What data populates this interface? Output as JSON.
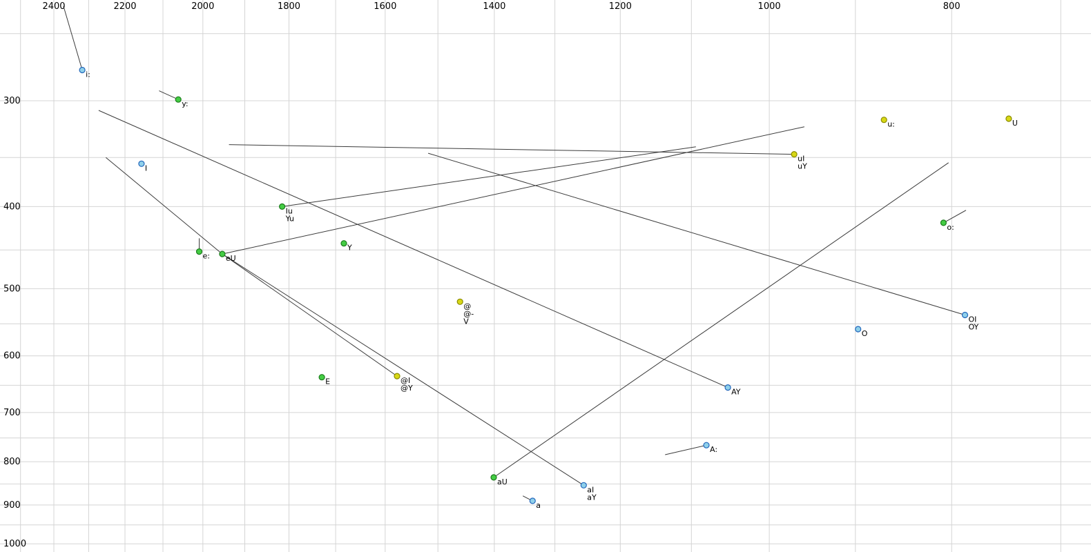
{
  "chart_data": {
    "type": "scatter",
    "title": "",
    "description": "Vowel formant plot (SAMPA labels), F2 on reversed log x-axis, F1 on log y-axis, diphthong trajectory lines",
    "x_axis": {
      "ticks": [
        2400,
        2200,
        2000,
        1800,
        1600,
        1400,
        1200,
        1000,
        800
      ],
      "scale": "log",
      "reversed": true,
      "grid_step": 100,
      "grid_min": 700,
      "grid_max": 2500
    },
    "y_axis": {
      "ticks": [
        300,
        400,
        500,
        600,
        700,
        800,
        900,
        1000
      ],
      "scale": "log",
      "direction": "down",
      "grid_step": 50,
      "grid_min": 250,
      "grid_max": 1000
    },
    "grid": true,
    "colors": {
      "blue": {
        "fill": "#8fd0ea",
        "stroke": "#2266bb"
      },
      "green": {
        "fill": "#44cc44",
        "stroke": "#1a7a1a"
      },
      "yellow": {
        "fill": "#d8d816",
        "stroke": "#8a8a00"
      },
      "grid": "#d4d4d4",
      "line": "#3a3a3a",
      "text": "#000000"
    },
    "points": [
      {
        "labels": [
          "i:"
        ],
        "f2": 2318,
        "f1": 276,
        "color": "blue"
      },
      {
        "labels": [
          "y:"
        ],
        "f2": 2061,
        "f1": 299,
        "color": "green"
      },
      {
        "labels": [
          "I"
        ],
        "f2": 2156,
        "f1": 356,
        "color": "blue"
      },
      {
        "labels": [
          "Iu",
          "Yu"
        ],
        "f2": 1815,
        "f1": 400,
        "color": "green"
      },
      {
        "labels": [
          "u:"
        ],
        "f2": 869,
        "f1": 316,
        "color": "yellow"
      },
      {
        "labels": [
          "U"
        ],
        "f2": 746,
        "f1": 315,
        "color": "yellow"
      },
      {
        "labels": [
          "uI",
          "uY"
        ],
        "f2": 970,
        "f1": 347,
        "color": "yellow"
      },
      {
        "labels": [
          "o:"
        ],
        "f2": 808,
        "f1": 418,
        "color": "green"
      },
      {
        "labels": [
          "e:"
        ],
        "f2": 2009,
        "f1": 452,
        "color": "green"
      },
      {
        "labels": [
          "eU"
        ],
        "f2": 1953,
        "f1": 455,
        "color": "green"
      },
      {
        "labels": [
          "Y"
        ],
        "f2": 1683,
        "f1": 442,
        "color": "green"
      },
      {
        "labels": [
          "@",
          "@-",
          "V"
        ],
        "f2": 1460,
        "f1": 518,
        "color": "yellow"
      },
      {
        "labels": [
          "OI",
          "OY"
        ],
        "f2": 787,
        "f1": 537,
        "color": "blue"
      },
      {
        "labels": [
          "O"
        ],
        "f2": 897,
        "f1": 558,
        "color": "blue"
      },
      {
        "labels": [
          "E"
        ],
        "f2": 1729,
        "f1": 636,
        "color": "green"
      },
      {
        "labels": [
          "@I",
          "@Y"
        ],
        "f2": 1577,
        "f1": 634,
        "color": "yellow"
      },
      {
        "labels": [
          "AY"
        ],
        "f2": 1052,
        "f1": 654,
        "color": "blue"
      },
      {
        "labels": [
          "A:"
        ],
        "f2": 1080,
        "f1": 765,
        "color": "blue"
      },
      {
        "labels": [
          "aU"
        ],
        "f2": 1401,
        "f1": 835,
        "color": "green"
      },
      {
        "labels": [
          "aI",
          "aY"
        ],
        "f2": 1255,
        "f1": 853,
        "color": "blue"
      },
      {
        "labels": [
          "a"
        ],
        "f2": 1336,
        "f1": 890,
        "color": "blue"
      }
    ],
    "lines": [
      {
        "name": "i:-onglide",
        "from": [
          2372,
          232
        ],
        "to": [
          2318,
          276
        ]
      },
      {
        "name": "y:-onglide",
        "from": [
          2110,
          292
        ],
        "to": [
          2061,
          299
        ]
      },
      {
        "name": "AY-trajectory",
        "from": [
          1052,
          654
        ],
        "to": [
          2272,
          308
        ]
      },
      {
        "name": "uY-trajectory",
        "from": [
          970,
          347
        ],
        "to": [
          1937,
          338
        ]
      },
      {
        "name": "Yu-trajectory",
        "from": [
          1815,
          400
        ],
        "to": [
          1094,
          340
        ]
      },
      {
        "name": "eU-trajectory",
        "from": [
          1953,
          455
        ],
        "to": [
          958,
          322
        ]
      },
      {
        "name": "eU-onglide",
        "from": [
          2252,
          350
        ],
        "to": [
          1953,
          455
        ]
      },
      {
        "name": "@Y-trajectory",
        "from": [
          1953,
          455
        ],
        "to": [
          1577,
          634
        ]
      },
      {
        "name": "aY-trajectory",
        "from": [
          1953,
          455
        ],
        "to": [
          1255,
          853
        ]
      },
      {
        "name": "aU-trajectory",
        "from": [
          1401,
          835
        ],
        "to": [
          803,
          355
        ]
      },
      {
        "name": "OY-trajectory",
        "from": [
          787,
          537
        ],
        "to": [
          1518,
          346
        ]
      },
      {
        "name": "o:-onglide",
        "from": [
          808,
          418
        ],
        "to": [
          786,
          404
        ]
      },
      {
        "name": "A:-onglide",
        "from": [
          1136,
          785
        ],
        "to": [
          1080,
          765
        ]
      },
      {
        "name": "a-onglide",
        "from": [
          1352,
          878
        ],
        "to": [
          1336,
          890
        ]
      },
      {
        "name": "e:-onglide",
        "from": [
          2009,
          436
        ],
        "to": [
          2009,
          452
        ]
      }
    ]
  }
}
